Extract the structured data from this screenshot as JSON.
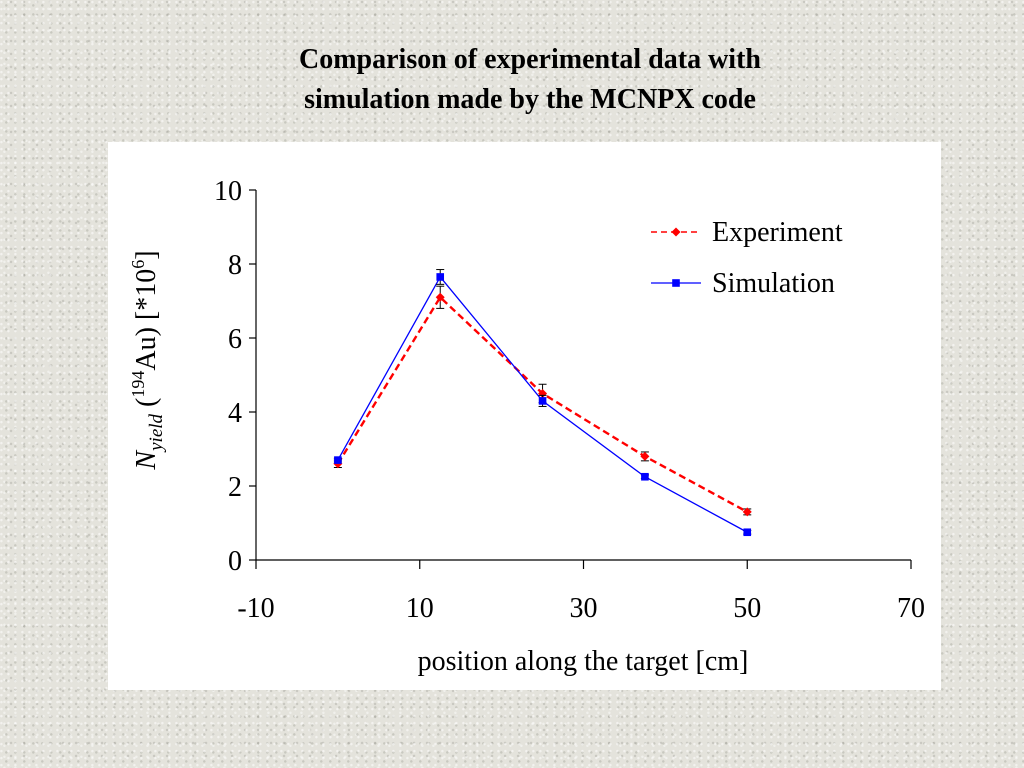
{
  "title": {
    "line1": "Comparison of  experimental  data with",
    "line2": "simulation made by the MCNPX code"
  },
  "chart_data": {
    "type": "line",
    "xlabel": "position along the target [cm]",
    "ylabel": {
      "symbol": "N",
      "subscript": "yield",
      "isotope_mass": "194",
      "element": "Au",
      "exponent": "6"
    },
    "xlim": [
      -10,
      70
    ],
    "ylim": [
      0,
      10
    ],
    "xticks": [
      -10,
      10,
      30,
      50,
      70
    ],
    "yticks": [
      0,
      2,
      4,
      6,
      8,
      10
    ],
    "grid": false,
    "legend_position": "top-right",
    "series": [
      {
        "name": "Experiment",
        "color": "#ff0000",
        "line_style": "dashed",
        "marker": "diamond",
        "x": [
          0,
          12.5,
          25,
          37.5,
          50
        ],
        "y": [
          2.6,
          7.1,
          4.5,
          2.8,
          1.3
        ],
        "err": [
          0.1,
          0.3,
          0.25,
          0.12,
          0.08
        ]
      },
      {
        "name": "Simulation",
        "color": "#0000ff",
        "line_style": "solid",
        "marker": "square",
        "x": [
          0,
          12.5,
          25,
          37.5,
          50
        ],
        "y": [
          2.7,
          7.65,
          4.3,
          2.25,
          0.75
        ],
        "err": [
          0.05,
          0.2,
          0.15,
          0.05,
          0.05
        ]
      }
    ]
  }
}
